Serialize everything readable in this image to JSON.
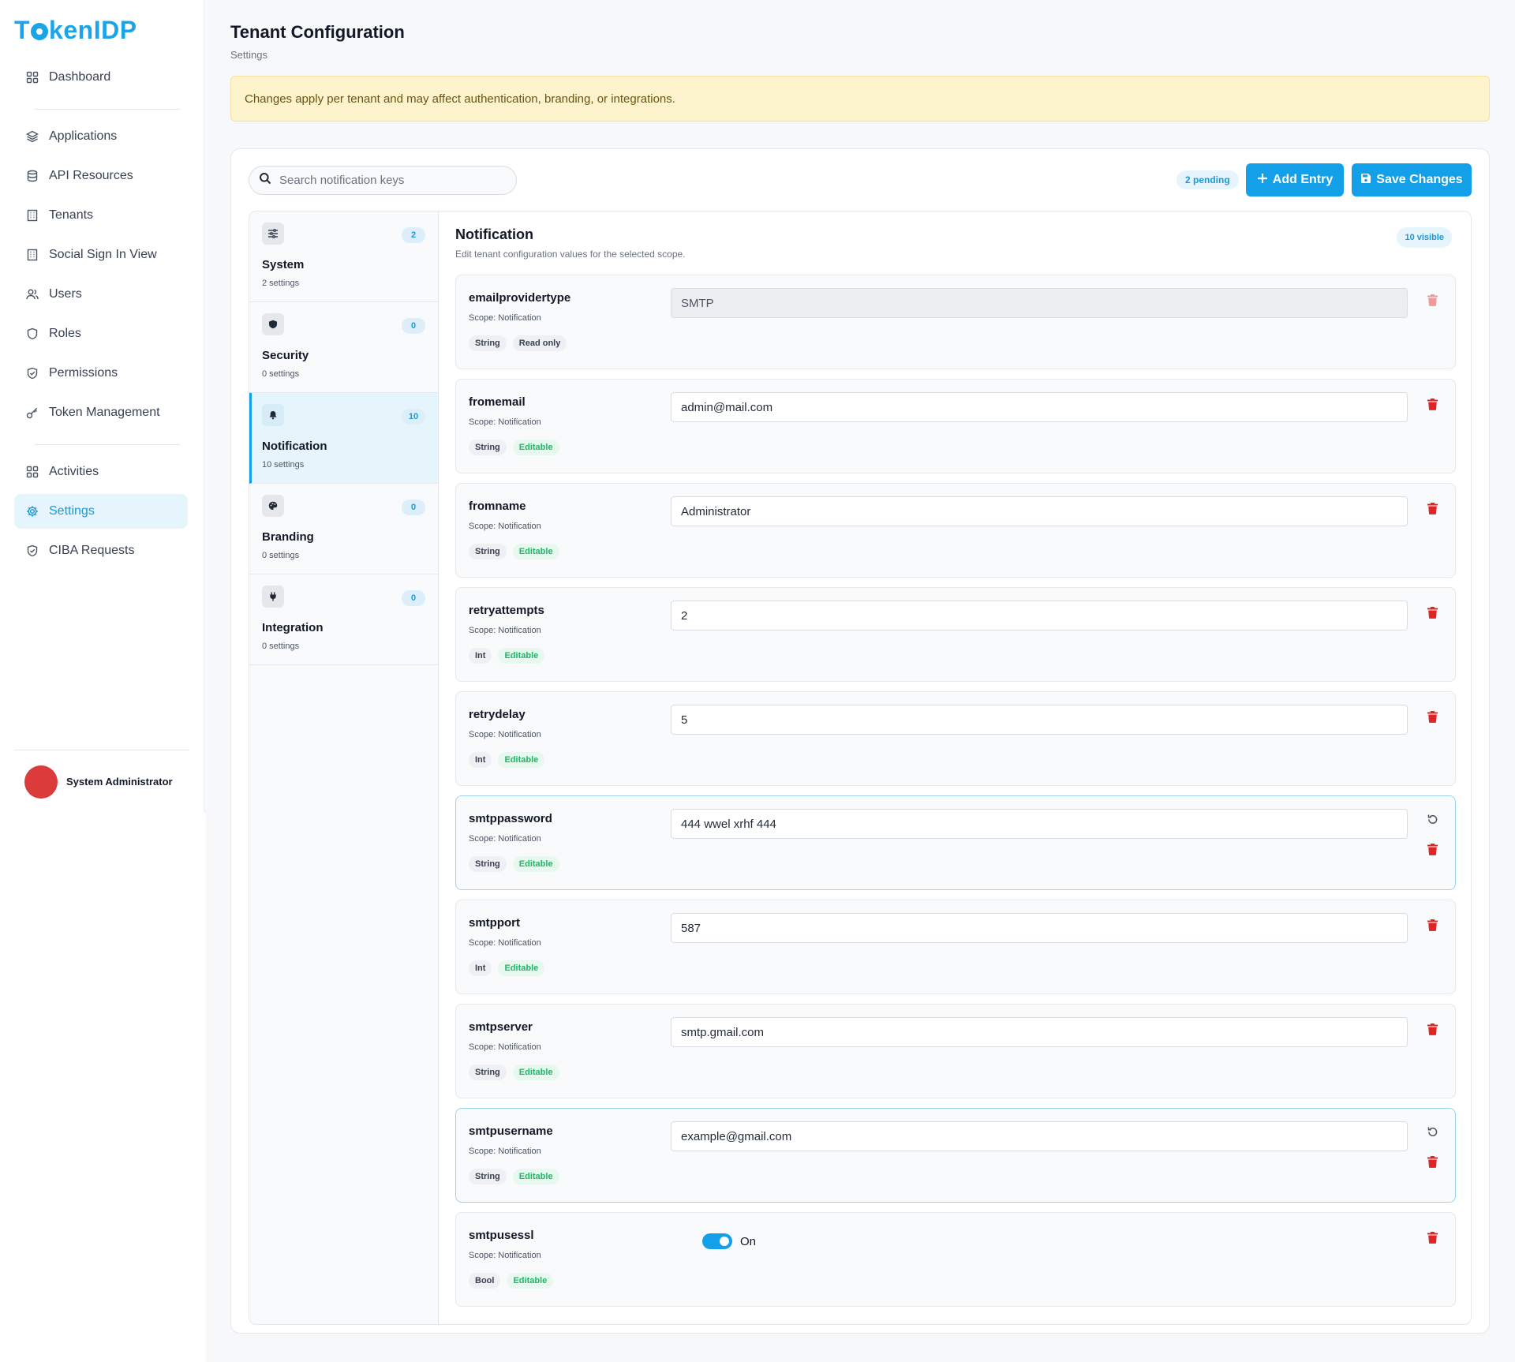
{
  "brand": {
    "logo": "TokenIDP",
    "accent": "#14a0e8"
  },
  "sidebar": {
    "items": [
      {
        "label": "Dashboard",
        "icon": "grid-icon"
      },
      {
        "label": "Applications",
        "icon": "layers-icon"
      },
      {
        "label": "API Resources",
        "icon": "database-icon"
      },
      {
        "label": "Tenants",
        "icon": "building-icon"
      },
      {
        "label": "Social Sign In View",
        "icon": "building-icon"
      },
      {
        "label": "Users",
        "icon": "users-icon"
      },
      {
        "label": "Roles",
        "icon": "shield-icon"
      },
      {
        "label": "Permissions",
        "icon": "shield-check-icon"
      },
      {
        "label": "Token Management",
        "icon": "key-icon"
      },
      {
        "label": "Activities",
        "icon": "grid-icon"
      },
      {
        "label": "Settings",
        "icon": "gear-icon",
        "active": true
      },
      {
        "label": "CIBA Requests",
        "icon": "shield-check-icon"
      }
    ],
    "user": {
      "name": "System Administrator"
    }
  },
  "header": {
    "title": "Tenant Configuration",
    "breadcrumb": "Settings",
    "alert": "Changes apply per tenant and may affect authentication, branding, or integrations."
  },
  "toolbar": {
    "search_placeholder": "Search notification keys",
    "pending": "2 pending",
    "add_label": "Add Entry",
    "save_label": "Save Changes"
  },
  "scopes": [
    {
      "name": "System",
      "count": "2",
      "summary": "2 settings",
      "icon": "sliders-icon"
    },
    {
      "name": "Security",
      "count": "0",
      "summary": "0 settings",
      "icon": "shield-icon"
    },
    {
      "name": "Notification",
      "count": "10",
      "summary": "10 settings",
      "icon": "bell-icon",
      "active": true
    },
    {
      "name": "Branding",
      "count": "0",
      "summary": "0 settings",
      "icon": "palette-icon"
    },
    {
      "name": "Integration",
      "count": "0",
      "summary": "0 settings",
      "icon": "plug-icon"
    }
  ],
  "section": {
    "title": "Notification",
    "subtitle": "Edit tenant configuration values for the selected scope.",
    "visible": "10 visible"
  },
  "entries": [
    {
      "key": "emailprovidertype",
      "scope": "Scope: Notification",
      "type": "String",
      "mode": "Read only",
      "value": "SMTP"
    },
    {
      "key": "fromemail",
      "scope": "Scope: Notification",
      "type": "String",
      "mode": "Editable",
      "value": "admin@mail.com"
    },
    {
      "key": "fromname",
      "scope": "Scope: Notification",
      "type": "String",
      "mode": "Editable",
      "value": "Administrator"
    },
    {
      "key": "retryattempts",
      "scope": "Scope: Notification",
      "type": "Int",
      "mode": "Editable",
      "value": "2"
    },
    {
      "key": "retrydelay",
      "scope": "Scope: Notification",
      "type": "Int",
      "mode": "Editable",
      "value": "5"
    },
    {
      "key": "smtppassword",
      "scope": "Scope: Notification",
      "type": "String",
      "mode": "Editable",
      "value": "444 wwel xrhf 444",
      "modified": true
    },
    {
      "key": "smtpport",
      "scope": "Scope: Notification",
      "type": "Int",
      "mode": "Editable",
      "value": "587"
    },
    {
      "key": "smtpserver",
      "scope": "Scope: Notification",
      "type": "String",
      "mode": "Editable",
      "value": "smtp.gmail.com"
    },
    {
      "key": "smtpusername",
      "scope": "Scope: Notification",
      "type": "String",
      "mode": "Editable",
      "value": "example@gmail.com",
      "modified": true
    },
    {
      "key": "smtpusessl",
      "scope": "Scope: Notification",
      "type": "Bool",
      "mode": "Editable",
      "value": "On"
    }
  ]
}
